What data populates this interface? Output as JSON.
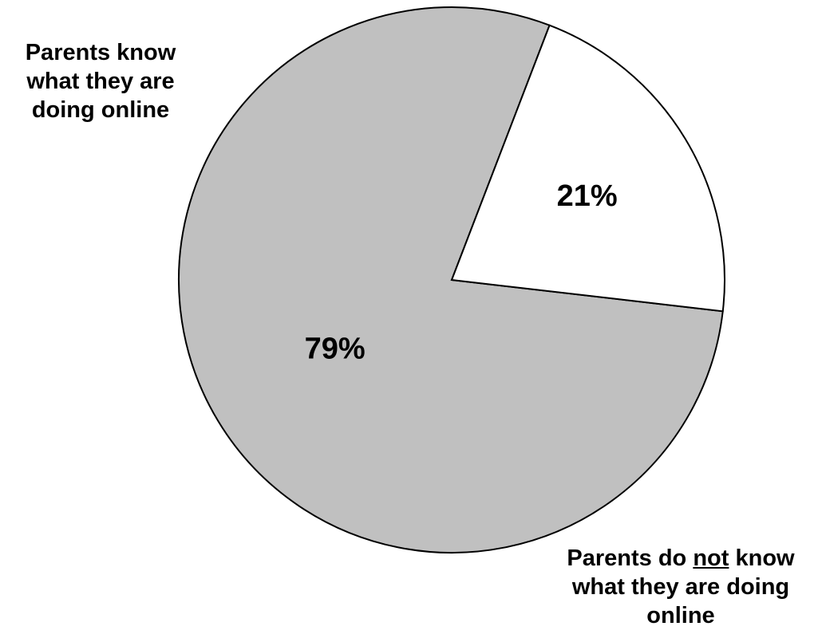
{
  "chart_data": {
    "type": "pie",
    "title": "",
    "slices": [
      {
        "label_parts": [
          "Parents know what they are doing online"
        ],
        "value": 79,
        "value_label": "79%",
        "color": "#c0c0c0"
      },
      {
        "label_parts": [
          "Parents do ",
          "not",
          " know what they are doing online"
        ],
        "value": 21,
        "value_label": "21%",
        "color": "#ffffff"
      }
    ],
    "legend_placement": "labels beside slices",
    "outline_color": "#000000"
  }
}
